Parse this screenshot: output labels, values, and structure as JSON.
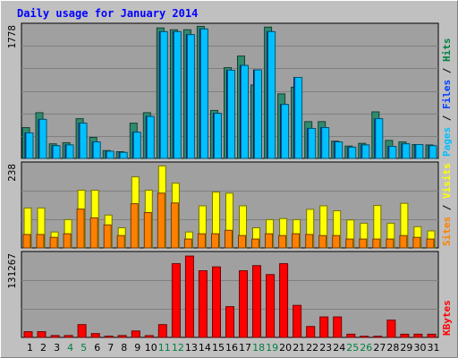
{
  "chart_data": {
    "type": "bar",
    "title": "Daily usage for January 2014",
    "categories": [
      "1",
      "2",
      "3",
      "4",
      "5",
      "6",
      "7",
      "8",
      "9",
      "10",
      "11",
      "12",
      "13",
      "14",
      "15",
      "16",
      "17",
      "18",
      "19",
      "20",
      "21",
      "22",
      "23",
      "24",
      "25",
      "26",
      "27",
      "28",
      "29",
      "30",
      "31"
    ],
    "weekend_days": [
      "4",
      "5",
      "11",
      "12",
      "18",
      "19",
      "25",
      "26"
    ],
    "panels": [
      {
        "name": "pages-files-hits",
        "ymax_label": "1778",
        "ymax": 1778,
        "right_label_parts": [
          {
            "text": "Pages",
            "color": "#00c0ff"
          },
          {
            "text": " / ",
            "color": "#000000"
          },
          {
            "text": "Files",
            "color": "#0040ff"
          },
          {
            "text": " / ",
            "color": "#000000"
          },
          {
            "text": "Hits",
            "color": "#008040"
          }
        ],
        "series": [
          {
            "name": "Hits",
            "color": "#2e8b6e",
            "values": [
              410,
              610,
              195,
              210,
              530,
              280,
              105,
              90,
              470,
              610,
              1740,
              1715,
              1715,
              1760,
              640,
              1210,
              1365,
              980,
              1750,
              860,
              950,
              490,
              490,
              230,
              165,
              200,
              620,
              240,
              220,
              185,
              180
            ]
          },
          {
            "name": "Files",
            "color": "#0040ff",
            "values": [
              340,
              520,
              170,
              180,
              470,
              220,
              95,
              80,
              350,
              560,
              1690,
              1690,
              1650,
              1725,
              600,
              1175,
              1240,
              1180,
              1690,
              720,
              1080,
              400,
              410,
              220,
              150,
              180,
              530,
              160,
              195,
              185,
              170
            ]
          },
          {
            "name": "Pages",
            "color": "#00c0ff",
            "values": [
              340,
              520,
              170,
              180,
              470,
              220,
              95,
              80,
              350,
              560,
              1690,
              1690,
              1650,
              1725,
              600,
              1175,
              1240,
              1180,
              1690,
              720,
              1080,
              400,
              410,
              220,
              150,
              180,
              530,
              160,
              195,
              185,
              170
            ]
          }
        ]
      },
      {
        "name": "sites-visits",
        "ymax_label": "238",
        "ymax": 238,
        "right_label_parts": [
          {
            "text": "Sites",
            "color": "#ff8000"
          },
          {
            "text": " / ",
            "color": "#000000"
          },
          {
            "text": "Visits",
            "color": "#ffff00"
          }
        ],
        "series": [
          {
            "name": "Visits",
            "color": "#ffff00",
            "values": [
              113,
              113,
              45,
              80,
              163,
              163,
              93,
              57,
              201,
              163,
              232,
              183,
              45,
              119,
              158,
              155,
              119,
              57,
              80,
              83,
              80,
              109,
              119,
              105,
              79,
              70,
              120,
              70,
              126,
              60,
              48
            ]
          },
          {
            "name": "Sites",
            "color": "#ff8000",
            "values": [
              38,
              38,
              30,
              40,
              110,
              85,
              65,
              35,
              125,
              100,
              155,
              127,
              25,
              40,
              40,
              50,
              35,
              25,
              40,
              35,
              40,
              38,
              35,
              35,
              25,
              25,
              25,
              25,
              35,
              30,
              25
            ]
          }
        ]
      },
      {
        "name": "kbytes",
        "ymax_label": "131267",
        "ymax": 131267,
        "right_label_parts": [
          {
            "text": "KBytes",
            "color": "#ff0000"
          }
        ],
        "series": [
          {
            "name": "KBytes",
            "color": "#ff0000",
            "values": [
              9000,
              9000,
              3000,
              3000,
              20000,
              6000,
              2000,
              3000,
              10000,
              2800,
              20000,
              115000,
              127000,
              104000,
              110000,
              48000,
              104000,
              112000,
              98000,
              115000,
              50000,
              17000,
              32000,
              32000,
              5000,
              1800,
              1800,
              27000,
              5000,
              5000,
              5000
            ]
          }
        ]
      }
    ],
    "colors": {
      "background": "#c0c0c0",
      "plot_background": "#a0a0a0",
      "title": "#0000ff",
      "gridline": "#808080",
      "weekend_label": "#008040",
      "weekday_label": "#000000"
    }
  }
}
